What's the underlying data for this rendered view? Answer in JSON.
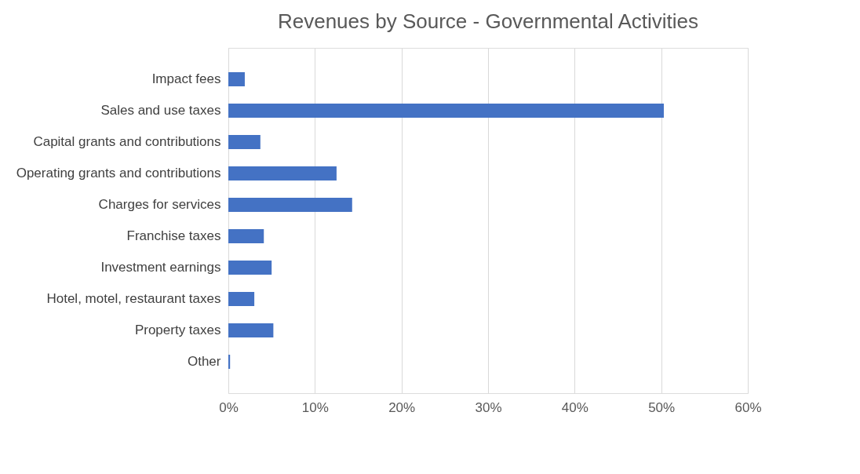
{
  "chart_data": {
    "type": "bar",
    "orientation": "horizontal",
    "title": "Revenues by Source - Governmental Activities",
    "categories": [
      "Impact fees",
      "Sales and use taxes",
      "Capital grants and contributions",
      "Operating grants and contributions",
      "Charges for services",
      "Franchise taxes",
      "Investment earnings",
      "Hotel, motel, restaurant taxes",
      "Property taxes",
      "Other"
    ],
    "values": [
      1.9,
      50.3,
      3.7,
      12.5,
      14.3,
      4.1,
      5.0,
      3.0,
      5.2,
      0.2
    ],
    "color": "#4472c4",
    "xlim": [
      0,
      60
    ],
    "xticks": [
      {
        "value": 0,
        "label": "0%"
      },
      {
        "value": 10,
        "label": "10%"
      },
      {
        "value": 20,
        "label": "20%"
      },
      {
        "value": 30,
        "label": "30%"
      },
      {
        "value": 40,
        "label": "40%"
      },
      {
        "value": 50,
        "label": "50%"
      },
      {
        "value": 60,
        "label": "60%"
      }
    ],
    "grid": "x"
  }
}
